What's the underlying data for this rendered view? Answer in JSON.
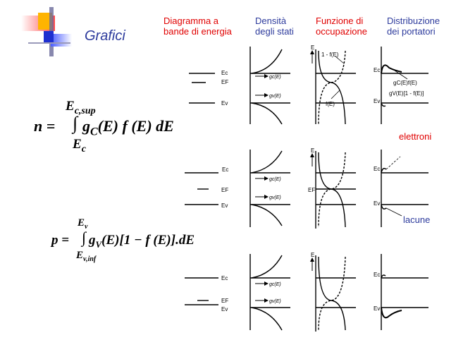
{
  "slide": {
    "title": "Grafici",
    "headers": {
      "band_diagram": [
        "Diagramma a",
        "bande di energia"
      ],
      "density": [
        "Densità",
        "degli stati"
      ],
      "occupation": [
        "Funzione di",
        "occupazione"
      ],
      "distribution": [
        "Distribuzione",
        "dei portatori"
      ]
    },
    "labels": {
      "electrons": "elettroni",
      "holes": "lacune"
    },
    "formula_n": {
      "lhs": "n =",
      "upper": "E",
      "upper_sub": "c,sup",
      "integrand_g": "g",
      "integrand_sub": "C",
      "integrand_rest": "(E) f (E) dE",
      "lower": "E",
      "lower_sub": "c"
    },
    "formula_p": {
      "lhs": "p =",
      "upper": "E",
      "upper_sub": "v",
      "integrand_g": "g",
      "integrand_sub": "V",
      "integrand_rest": "(E)[1 − f (E)].dE",
      "lower": "E",
      "lower_sub": "v,inf"
    },
    "diagram_labels": {
      "ec": "Ec",
      "ef": "EF",
      "ev": "Ev",
      "gc": "gc(E)",
      "gv": "gv(E)",
      "one_minus_f": "1 - f(E)",
      "f": "f(E)",
      "e_axis": "E",
      "gc_f": "gC(E)f(E)",
      "gv_1mf": "gV(E)[1 - f(E)]"
    }
  }
}
